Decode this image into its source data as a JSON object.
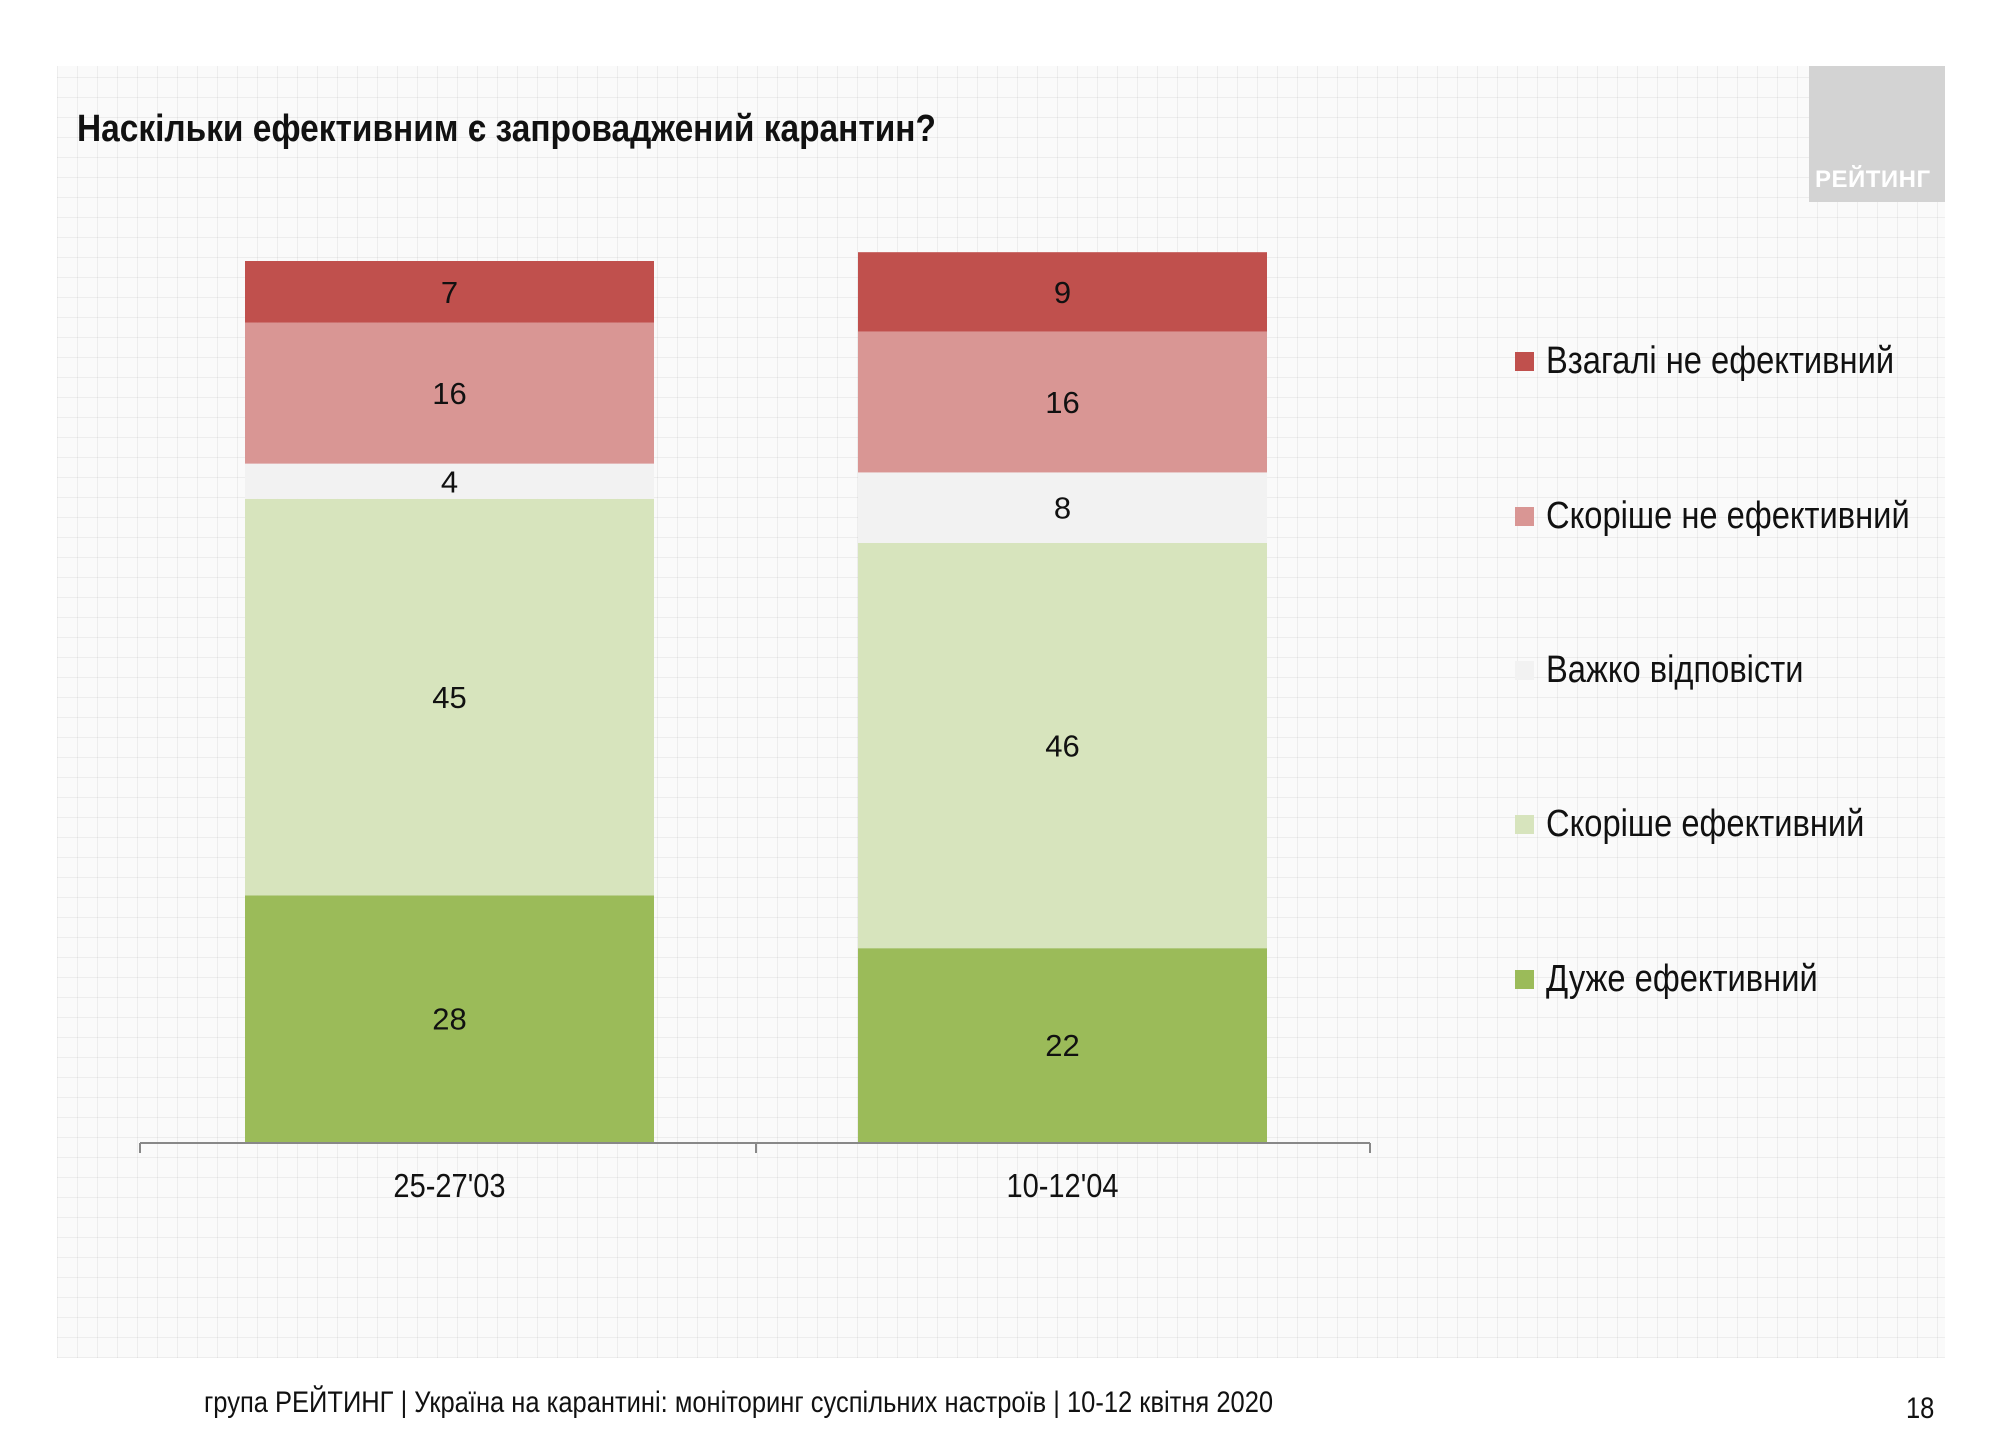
{
  "title": "Наскільки ефективним є запроваджений карантин?",
  "logo_text": "РЕЙТИНГ",
  "footer": "група РЕЙТИНГ | Україна на карантині: моніторинг суспільних настроїв  | 10-12 квітня  2020",
  "page_number": "18",
  "chart_data": {
    "type": "bar",
    "stacked": true,
    "title": "Наскільки ефективним є запроваджений карантин?",
    "categories": [
      "25-27'03",
      "10-12'04"
    ],
    "series": [
      {
        "name": "Дуже ефективний",
        "color": "#9bbb59",
        "values": [
          28,
          22
        ]
      },
      {
        "name": "Скоріше ефективний",
        "color": "#d7e4bd",
        "values": [
          45,
          46
        ]
      },
      {
        "name": "Важко відповісти",
        "color": "#f2f2f2",
        "values": [
          4,
          8
        ]
      },
      {
        "name": "Скоріше не ефективний",
        "color": "#d99694",
        "values": [
          16,
          16
        ]
      },
      {
        "name": "Взагалі не ефективний",
        "color": "#c0504d",
        "values": [
          7,
          9
        ]
      }
    ],
    "legend_order": [
      "Взагалі не ефективний",
      "Скоріше не ефективний",
      "Важко відповісти",
      "Скоріше ефективний",
      "Дуже ефективний"
    ],
    "legend_position": "right",
    "grid": false,
    "data_labels": true
  }
}
